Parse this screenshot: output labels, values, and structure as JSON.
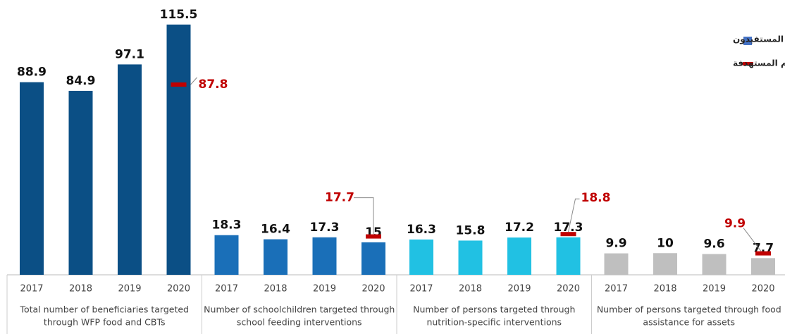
{
  "chart_data": {
    "type": "bar",
    "ylim": [
      0,
      120
    ],
    "legend": {
      "position": "upper right"
    },
    "series": [
      {
        "name": "المستفيدون",
        "color": "#4472c4"
      },
      {
        "name": "الأرقام المستهدفة",
        "color": "#c00000"
      }
    ],
    "groups": [
      {
        "name": [
          "Total number of beneficiaries targeted",
          "through WFP food and CBTs"
        ],
        "color": "#0b4f85",
        "categories": [
          "2017",
          "2018",
          "2019",
          "2020"
        ],
        "values": [
          88.9,
          84.9,
          97.1,
          115.5
        ],
        "target": 87.8
      },
      {
        "name": [
          "Number of schoolchildren targeted through",
          "school feeding interventions"
        ],
        "color": "#1a6fb8",
        "categories": [
          "2017",
          "2018",
          "2019",
          "2020"
        ],
        "values": [
          18.3,
          16.4,
          17.3,
          15
        ],
        "target": 17.7
      },
      {
        "name": [
          "Number of persons targeted through",
          "nutrition-specific interventions"
        ],
        "color": "#21c1e3",
        "categories": [
          "2017",
          "2018",
          "2019",
          "2020"
        ],
        "values": [
          16.3,
          15.8,
          17.2,
          17.3
        ],
        "target": 18.8
      },
      {
        "name": [
          "Number of persons targeted through food",
          "assistance for assets"
        ],
        "color": "#bfbfbf",
        "categories": [
          "2017",
          "2018",
          "2019",
          "2020"
        ],
        "values": [
          9.9,
          10,
          9.6,
          7.7
        ],
        "target": 9.9
      }
    ]
  }
}
